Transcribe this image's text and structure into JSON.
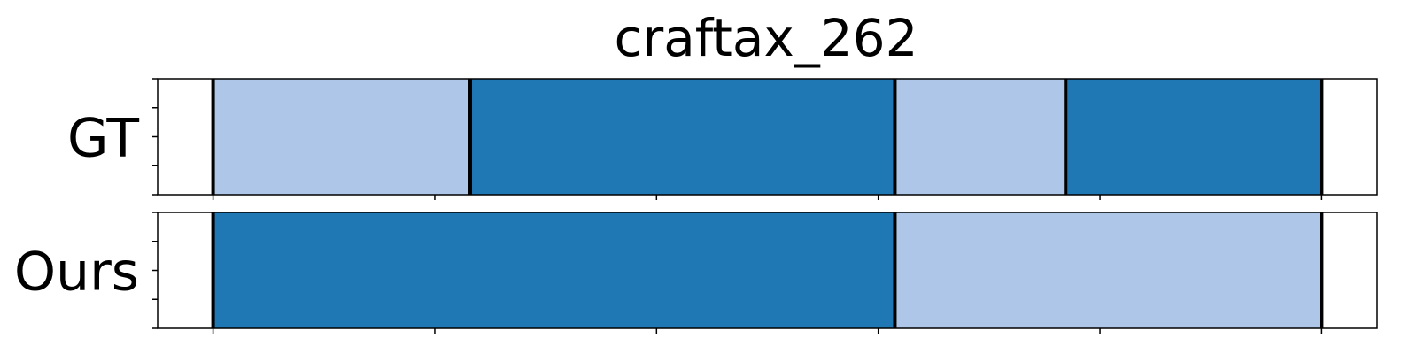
{
  "chart_data": {
    "type": "segmentation-timeline",
    "title": "craftax_262",
    "x_range": [
      0,
      1100
    ],
    "x_ticks": [
      50,
      250,
      450,
      650,
      850,
      1050
    ],
    "rows": [
      {
        "label": "GT",
        "segments": [
          {
            "start": 50,
            "end": 282,
            "color": "#aec7e8"
          },
          {
            "start": 282,
            "end": 665,
            "color": "#1f77b4"
          },
          {
            "start": 665,
            "end": 819,
            "color": "#aec7e8"
          },
          {
            "start": 819,
            "end": 1050,
            "color": "#1f77b4"
          }
        ],
        "boundaries": [
          50,
          282,
          665,
          819,
          1050
        ]
      },
      {
        "label": "Ours",
        "segments": [
          {
            "start": 50,
            "end": 665,
            "color": "#1f77b4"
          },
          {
            "start": 665,
            "end": 1050,
            "color": "#aec7e8"
          }
        ],
        "boundaries": [
          50,
          665,
          1050
        ]
      }
    ]
  }
}
